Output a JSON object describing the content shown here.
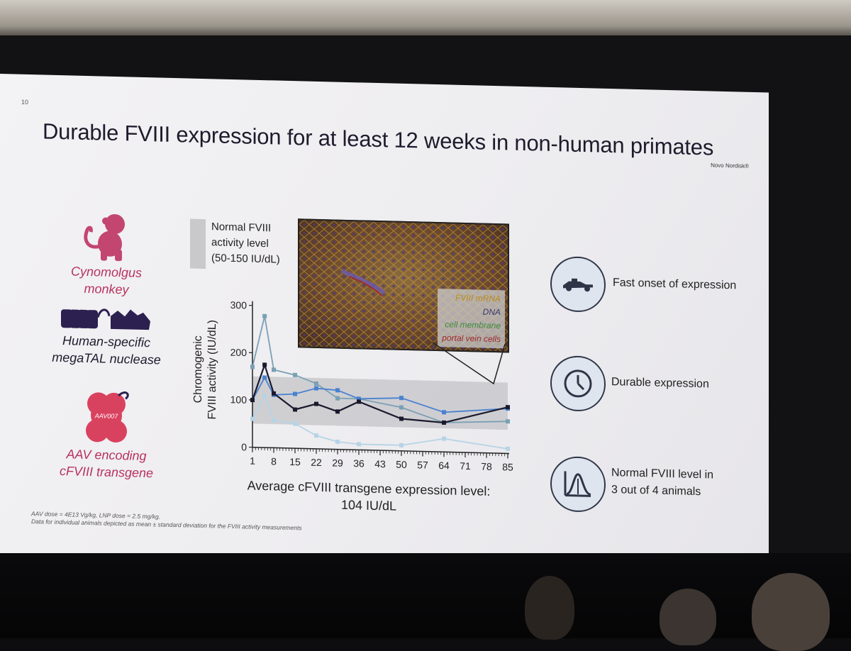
{
  "slide": {
    "number": "10",
    "brand": "Novo Nordisk®",
    "title": "Durable FVIII expression for at least 12 weeks in non-human primates"
  },
  "left_panel": {
    "monkey_label": "Cynomolgus monkey",
    "nuclease_label_1": "Human-specific",
    "nuclease_label_2": "megaTAL nuclease",
    "aav_badge": "AAV007",
    "aav_label_1": "AAV encoding",
    "aav_label_2": "cFVIII transgene"
  },
  "legend": {
    "line1": "Normal FVIII",
    "line2": "activity level",
    "line3": "(50-150 IU/dL)"
  },
  "microscopy_legend": [
    {
      "text": "FVIII mRNA",
      "color": "#b88a1a"
    },
    {
      "text": "DNA",
      "color": "#3a3a6a"
    },
    {
      "text": "cell membrane",
      "color": "#3e8a3e"
    },
    {
      "text": "portal vein cells",
      "color": "#a02828"
    }
  ],
  "chart_data": {
    "type": "line",
    "ylabel_1": "Chromogenic",
    "ylabel_2": "FVIII activity (IU/dL)",
    "xlabel": "",
    "x": [
      1,
      5,
      8,
      15,
      22,
      29,
      36,
      50,
      64,
      85
    ],
    "xticks": [
      1,
      8,
      15,
      22,
      29,
      36,
      43,
      50,
      57,
      64,
      71,
      78,
      85
    ],
    "yticks": [
      0,
      100,
      200,
      300
    ],
    "ylim": [
      0,
      300
    ],
    "xlim": [
      1,
      85
    ],
    "normal_band": [
      50,
      150
    ],
    "series": [
      {
        "color": "#1a1a2e",
        "values": [
          100,
          175,
          115,
          82,
          95,
          80,
          102,
          68,
          62,
          98
        ]
      },
      {
        "color": "#4a82d0",
        "values": [
          100,
          148,
          112,
          115,
          128,
          125,
          108,
          112,
          84,
          95
        ]
      },
      {
        "color": "#7aa0b4",
        "values": [
          170,
          278,
          165,
          155,
          138,
          108,
          108,
          92,
          62,
          68
        ]
      },
      {
        "color": "#b6d4e6",
        "values": [
          60,
          110,
          58,
          52,
          28,
          16,
          12,
          12,
          28,
          10
        ]
      }
    ]
  },
  "average": {
    "line1": "Average cFVIII transgene expression level:",
    "line2": "104 IU/dL"
  },
  "footnote": {
    "line1": "AAV dose = 4E13 Vg/kg, LNP dose = 2.5 mg/kg.",
    "line2": "Data for individual animals depicted as mean ± standard deviation for the FVIII activity measurements"
  },
  "features": [
    {
      "icon": "race-car-icon",
      "label_1": "Fast onset of expression",
      "label_2": ""
    },
    {
      "icon": "clock-icon",
      "label_1": "Durable expression",
      "label_2": ""
    },
    {
      "icon": "bell-curve-icon",
      "label_1": "Normal FVIII level in",
      "label_2": "3 out of 4 animals"
    }
  ]
}
